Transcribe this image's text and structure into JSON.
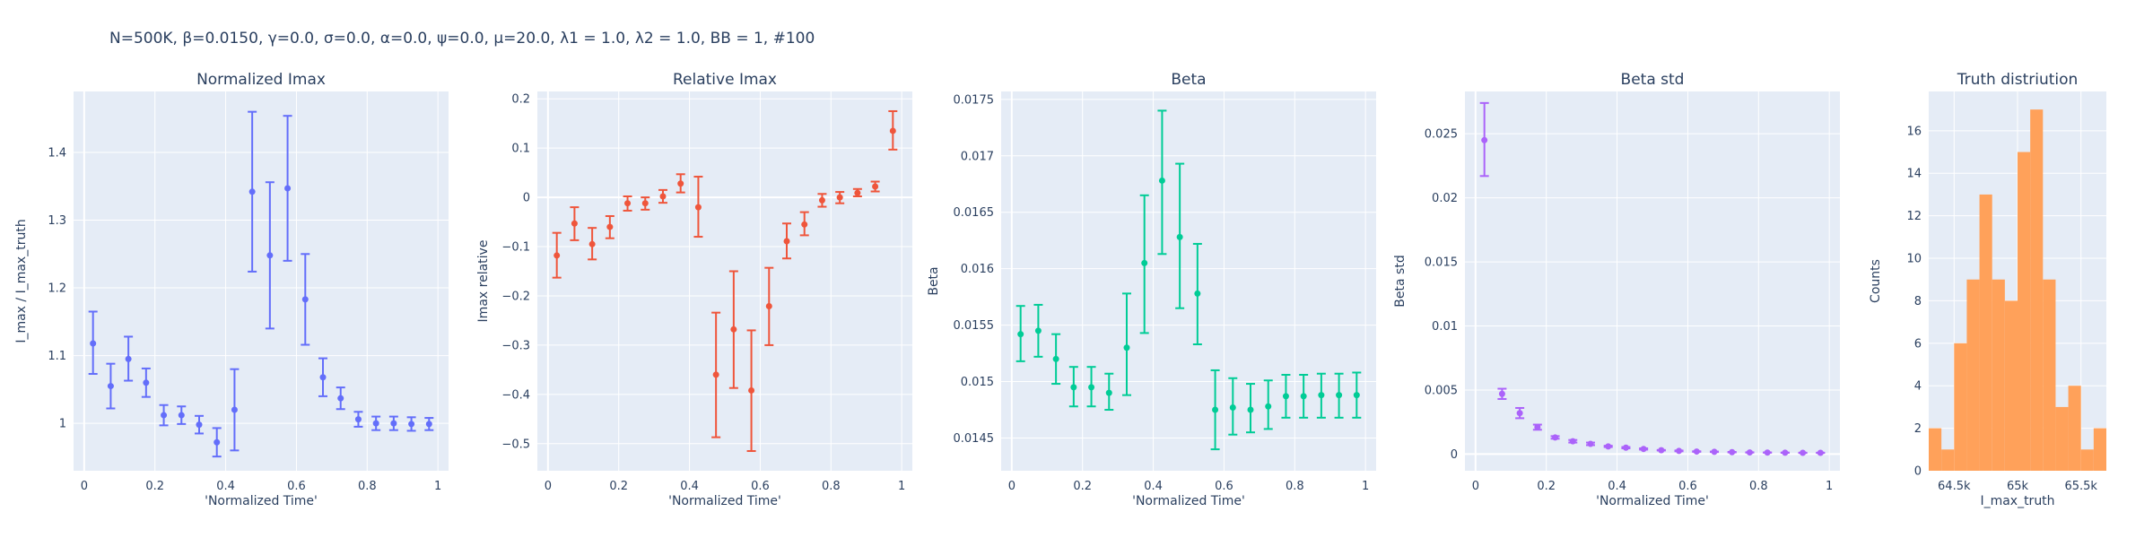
{
  "page": {
    "title": "N=500K, β=0.0150, γ=0.0, σ=0.0,  α=0.0, ψ=0.0, μ=20.0, λ1 = 1.0, λ2 = 1.0, BB = 1, #100"
  },
  "colors": {
    "panel_bg": "#e5ecf6",
    "grid": "#ffffff",
    "normalized_imax": "#636efa",
    "relative_imax": "#ef553b",
    "beta": "#00cc96",
    "beta_std": "#ab63fa",
    "truth": "#ffa15a"
  },
  "chart_data": [
    {
      "type": "scatter",
      "title": "Normalized Imax",
      "xlabel": "'Normalized Time'",
      "ylabel": "I_max / I_max_truth",
      "xlim": [
        -0.03,
        1.03
      ],
      "ylim": [
        0.93,
        1.49
      ],
      "xticks": [
        0,
        0.2,
        0.4,
        0.6,
        0.8,
        1
      ],
      "xticklabels": [
        "0",
        "0.2",
        "0.4",
        "0.6",
        "0.8",
        "1"
      ],
      "yticks": [
        1,
        1.1,
        1.2,
        1.3,
        1.4
      ],
      "yticklabels": [
        "1",
        "1.1",
        "1.2",
        "1.3",
        "1.4"
      ],
      "grid": true,
      "series": [
        {
          "x": [
            0.025,
            0.075,
            0.125,
            0.175,
            0.225,
            0.275,
            0.325,
            0.375,
            0.425,
            0.475,
            0.525,
            0.575,
            0.625,
            0.675,
            0.725,
            0.775,
            0.825,
            0.875,
            0.925,
            0.975
          ],
          "y": [
            1.118,
            1.055,
            1.095,
            1.06,
            1.012,
            1.012,
            0.998,
            0.972,
            1.02,
            1.342,
            1.248,
            1.347,
            1.183,
            1.068,
            1.037,
            1.006,
            1.0,
            1.0,
            0.999,
            0.999
          ],
          "err_low": [
            1.073,
            1.022,
            1.063,
            1.039,
            0.997,
            0.999,
            0.985,
            0.951,
            0.96,
            1.224,
            1.14,
            1.24,
            1.116,
            1.04,
            1.021,
            0.995,
            0.99,
            0.99,
            0.989,
            0.99
          ],
          "err_high": [
            1.165,
            1.088,
            1.128,
            1.081,
            1.027,
            1.025,
            1.011,
            0.993,
            1.08,
            1.46,
            1.356,
            1.454,
            1.25,
            1.096,
            1.053,
            1.017,
            1.01,
            1.01,
            1.009,
            1.008
          ]
        }
      ]
    },
    {
      "type": "scatter",
      "title": "Relative Imax",
      "xlabel": "'Normalized Time'",
      "ylabel": "Imax relative",
      "xlim": [
        -0.03,
        1.03
      ],
      "ylim": [
        -0.555,
        0.215
      ],
      "xticks": [
        0,
        0.2,
        0.4,
        0.6,
        0.8,
        1
      ],
      "xticklabels": [
        "0",
        "0.2",
        "0.4",
        "0.6",
        "0.8",
        "1"
      ],
      "yticks": [
        -0.5,
        -0.4,
        -0.3,
        -0.2,
        -0.1,
        0,
        0.1,
        0.2
      ],
      "yticklabels": [
        "−0.5",
        "−0.4",
        "−0.3",
        "−0.2",
        "−0.1",
        "0",
        "0.1",
        "0.2"
      ],
      "grid": true,
      "series": [
        {
          "x": [
            0.025,
            0.075,
            0.125,
            0.175,
            0.225,
            0.275,
            0.325,
            0.375,
            0.425,
            0.475,
            0.525,
            0.575,
            0.625,
            0.675,
            0.725,
            0.775,
            0.825,
            0.875,
            0.925,
            0.975
          ],
          "y": [
            -0.118,
            -0.053,
            -0.095,
            -0.06,
            -0.012,
            -0.012,
            0.002,
            0.028,
            -0.02,
            -0.36,
            -0.268,
            -0.392,
            -0.221,
            -0.089,
            -0.055,
            -0.006,
            0.0,
            0.009,
            0.022,
            0.135
          ],
          "err_low": [
            -0.163,
            -0.087,
            -0.126,
            -0.083,
            -0.027,
            -0.025,
            -0.011,
            0.01,
            -0.08,
            -0.487,
            -0.387,
            -0.515,
            -0.3,
            -0.124,
            -0.077,
            -0.019,
            -0.012,
            0.002,
            0.012,
            0.097
          ],
          "err_high": [
            -0.072,
            -0.02,
            -0.062,
            -0.038,
            0.002,
            0.0,
            0.015,
            0.047,
            0.042,
            -0.234,
            -0.15,
            -0.27,
            -0.143,
            -0.053,
            -0.03,
            0.007,
            0.011,
            0.017,
            0.032,
            0.175
          ]
        }
      ]
    },
    {
      "type": "scatter",
      "title": "Beta",
      "xlabel": "'Normalized Time'",
      "ylabel": "Beta",
      "xlim": [
        -0.03,
        1.03
      ],
      "ylim": [
        0.01421,
        0.01757
      ],
      "xticks": [
        0,
        0.2,
        0.4,
        0.6,
        0.8,
        1
      ],
      "xticklabels": [
        "0",
        "0.2",
        "0.4",
        "0.6",
        "0.8",
        "1"
      ],
      "yticks": [
        0.0145,
        0.015,
        0.0155,
        0.016,
        0.0165,
        0.017,
        0.0175
      ],
      "yticklabels": [
        "0.0145",
        "0.015",
        "0.0155",
        "0.016",
        "0.0165",
        "0.017",
        "0.0175"
      ],
      "grid": true,
      "series": [
        {
          "x": [
            0.025,
            0.075,
            0.125,
            0.175,
            0.225,
            0.275,
            0.325,
            0.375,
            0.425,
            0.475,
            0.525,
            0.575,
            0.625,
            0.675,
            0.725,
            0.775,
            0.825,
            0.875,
            0.925,
            0.975
          ],
          "y": [
            0.01542,
            0.01545,
            0.0152,
            0.01495,
            0.01495,
            0.0149,
            0.0153,
            0.01605,
            0.01678,
            0.01628,
            0.01578,
            0.01475,
            0.01477,
            0.01475,
            0.01478,
            0.01487,
            0.01487,
            0.01488,
            0.01488,
            0.01488
          ],
          "err_low": [
            0.01518,
            0.01522,
            0.01498,
            0.01478,
            0.01478,
            0.01475,
            0.01488,
            0.01543,
            0.01613,
            0.01565,
            0.01533,
            0.0144,
            0.01453,
            0.01455,
            0.01458,
            0.01468,
            0.01468,
            0.01468,
            0.01468,
            0.01468
          ],
          "err_high": [
            0.01567,
            0.01568,
            0.01542,
            0.01513,
            0.01513,
            0.01507,
            0.01578,
            0.01665,
            0.0174,
            0.01693,
            0.01622,
            0.0151,
            0.01503,
            0.01498,
            0.01501,
            0.01506,
            0.01506,
            0.01507,
            0.01507,
            0.01508
          ]
        }
      ]
    },
    {
      "type": "scatter",
      "title": "Beta std",
      "xlabel": "'Normalized Time'",
      "ylabel": "Beta std",
      "xlim": [
        -0.03,
        1.03
      ],
      "ylim": [
        -0.0013,
        0.0283
      ],
      "xticks": [
        0,
        0.2,
        0.4,
        0.6,
        0.8,
        1
      ],
      "xticklabels": [
        "0",
        "0.2",
        "0.4",
        "0.6",
        "0.8",
        "1"
      ],
      "yticks": [
        0,
        0.005,
        0.01,
        0.015,
        0.02,
        0.025
      ],
      "yticklabels": [
        "0",
        "0.005",
        "0.01",
        "0.015",
        "0.02",
        "0.025"
      ],
      "grid": true,
      "series": [
        {
          "x": [
            0.025,
            0.075,
            0.125,
            0.175,
            0.225,
            0.275,
            0.325,
            0.375,
            0.425,
            0.475,
            0.525,
            0.575,
            0.625,
            0.675,
            0.725,
            0.775,
            0.825,
            0.875,
            0.925,
            0.975
          ],
          "y": [
            0.0245,
            0.0047,
            0.0032,
            0.0021,
            0.0013,
            0.001,
            0.0008,
            0.0006,
            0.0005,
            0.0004,
            0.0003,
            0.00025,
            0.0002,
            0.00018,
            0.00015,
            0.00013,
            0.00012,
            0.00011,
            0.0001,
            0.0001
          ],
          "err_low": [
            0.0217,
            0.0043,
            0.0028,
            0.0019,
            0.0012,
            0.0009,
            0.0007,
            0.00055,
            0.00045,
            0.00035,
            0.00028,
            0.00022,
            0.00018,
            0.00016,
            0.00013,
            0.00012,
            0.00011,
            0.0001,
            9e-05,
            9e-05
          ],
          "err_high": [
            0.0274,
            0.0051,
            0.0036,
            0.0023,
            0.0014,
            0.0011,
            0.0009,
            0.00065,
            0.00055,
            0.00045,
            0.00032,
            0.00028,
            0.00022,
            0.0002,
            0.00017,
            0.00014,
            0.00013,
            0.00012,
            0.00011,
            0.00011
          ]
        }
      ]
    },
    {
      "type": "bar",
      "title": "Truth distriution",
      "xlabel": "I_max_truth",
      "ylabel": "Counts",
      "xlim": [
        64300,
        65700
      ],
      "ylim": [
        0,
        17.85
      ],
      "xticks": [
        64500,
        65000,
        65500
      ],
      "xticklabels": [
        "64.5k",
        "65k",
        "65.5k"
      ],
      "yticks": [
        0,
        2,
        4,
        6,
        8,
        10,
        12,
        14,
        16
      ],
      "yticklabels": [
        "0",
        "2",
        "4",
        "6",
        "8",
        "10",
        "12",
        "14",
        "16"
      ],
      "grid": true,
      "bin_edges": [
        64300,
        64400,
        64500,
        64600,
        64700,
        64800,
        64900,
        65000,
        65100,
        65200,
        65300,
        65400,
        65500,
        65600,
        65700
      ],
      "counts": [
        2,
        1,
        6,
        9,
        13,
        9,
        8,
        15,
        17,
        9,
        3,
        4,
        1,
        2
      ]
    }
  ]
}
